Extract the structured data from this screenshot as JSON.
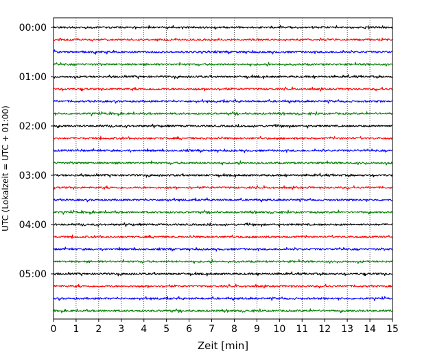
{
  "chart_data": {
    "type": "line",
    "title": "",
    "xlabel": "Zeit  [min]",
    "ylabel": "UTC (Lokalzeit = UTC + 01:00)",
    "xlim": [
      0,
      15
    ],
    "x_ticks": [
      "0",
      "1",
      "2",
      "3",
      "4",
      "5",
      "6",
      "7",
      "8",
      "9",
      "10",
      "11",
      "12",
      "13",
      "14",
      "15"
    ],
    "y_ticks": [
      {
        "label": "00:00",
        "row": 0
      },
      {
        "label": "01:00",
        "row": 4
      },
      {
        "label": "02:00",
        "row": 8
      },
      {
        "label": "03:00",
        "row": 12
      },
      {
        "label": "04:00",
        "row": 16
      },
      {
        "label": "05:00",
        "row": 20
      }
    ],
    "vertical_grid": "dotted",
    "trace_colors": [
      "#000000",
      "#ff0000",
      "#0000ff",
      "#008000"
    ],
    "traces": [
      {
        "hour": 0,
        "quarter": 0
      },
      {
        "hour": 0,
        "quarter": 1
      },
      {
        "hour": 0,
        "quarter": 2
      },
      {
        "hour": 0,
        "quarter": 3
      },
      {
        "hour": 1,
        "quarter": 0
      },
      {
        "hour": 1,
        "quarter": 1
      },
      {
        "hour": 1,
        "quarter": 2
      },
      {
        "hour": 1,
        "quarter": 3
      },
      {
        "hour": 2,
        "quarter": 0
      },
      {
        "hour": 2,
        "quarter": 1
      },
      {
        "hour": 2,
        "quarter": 2
      },
      {
        "hour": 2,
        "quarter": 3
      },
      {
        "hour": 3,
        "quarter": 0
      },
      {
        "hour": 3,
        "quarter": 1
      },
      {
        "hour": 3,
        "quarter": 2
      },
      {
        "hour": 3,
        "quarter": 3
      },
      {
        "hour": 4,
        "quarter": 0
      },
      {
        "hour": 4,
        "quarter": 1
      },
      {
        "hour": 4,
        "quarter": 2
      },
      {
        "hour": 4,
        "quarter": 3
      },
      {
        "hour": 5,
        "quarter": 0
      },
      {
        "hour": 5,
        "quarter": 1
      },
      {
        "hour": 5,
        "quarter": 2
      },
      {
        "hour": 5,
        "quarter": 3
      }
    ]
  }
}
